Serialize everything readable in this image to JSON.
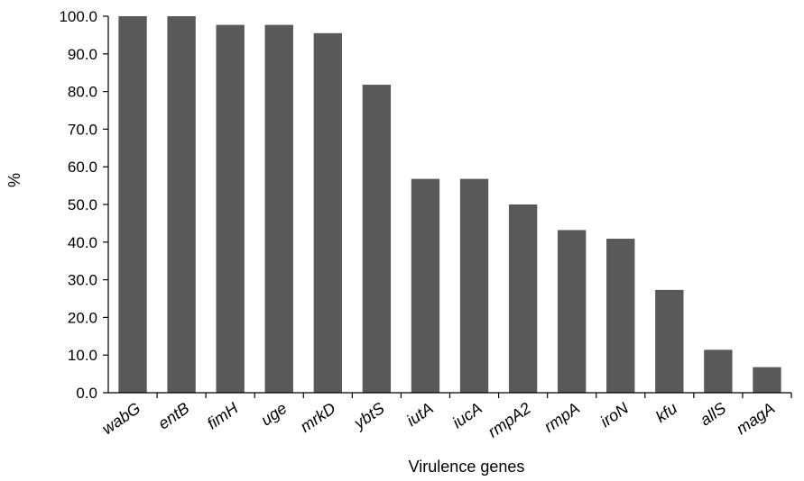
{
  "chart_data": {
    "type": "bar",
    "title": "",
    "xlabel": "Virulence genes",
    "ylabel": "%",
    "ylim": [
      0,
      100
    ],
    "y_ticks": [
      "0.0",
      "10.0",
      "20.0",
      "30.0",
      "40.0",
      "50.0",
      "60.0",
      "70.0",
      "80.0",
      "90.0",
      "100.0"
    ],
    "grid": false,
    "legend": "none",
    "bar_color": "#595959",
    "categories": [
      "wabG",
      "entB",
      "fimH",
      "uge",
      "mrkD",
      "ybtS",
      "iutA",
      "iucA",
      "rmpA2",
      "rmpA",
      "iroN",
      "kfu",
      "allS",
      "magA"
    ],
    "values": [
      100.0,
      100.0,
      97.7,
      97.7,
      95.5,
      81.8,
      56.8,
      56.8,
      50.0,
      43.2,
      40.9,
      27.3,
      11.4,
      6.8
    ]
  }
}
